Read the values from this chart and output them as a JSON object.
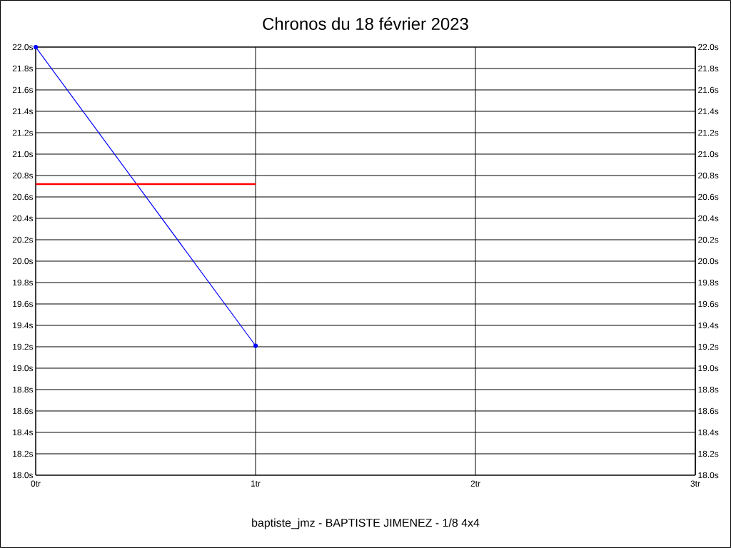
{
  "chart_data": {
    "type": "line",
    "title": "Chronos du 18 février 2023",
    "xlabel": "baptiste_jmz - BAPTISTE JIMENEZ - 1/8 4x4",
    "categories": [
      "0tr",
      "1tr",
      "2tr",
      "3tr"
    ],
    "ylim": [
      18,
      22
    ],
    "yticks": [
      {
        "value": 18,
        "label": "18.0s"
      },
      {
        "value": 18.2,
        "label": "18.2s"
      },
      {
        "value": 18.4,
        "label": "18.4s"
      },
      {
        "value": 18.6,
        "label": "18.6s"
      },
      {
        "value": 18.8,
        "label": "18.8s"
      },
      {
        "value": 19,
        "label": "19.0s"
      },
      {
        "value": 19.2,
        "label": "19.2s"
      },
      {
        "value": 19.4,
        "label": "19.4s"
      },
      {
        "value": 19.6,
        "label": "19.6s"
      },
      {
        "value": 19.8,
        "label": "19.8s"
      },
      {
        "value": 20,
        "label": "20.0s"
      },
      {
        "value": 20.2,
        "label": "20.2s"
      },
      {
        "value": 20.4,
        "label": "20.4s"
      },
      {
        "value": 20.6,
        "label": "20.6s"
      },
      {
        "value": 20.8,
        "label": "20.8s"
      },
      {
        "value": 21,
        "label": "21.0s"
      },
      {
        "value": 21.2,
        "label": "21.2s"
      },
      {
        "value": 21.4,
        "label": "21.4s"
      },
      {
        "value": 21.6,
        "label": "21.6s"
      },
      {
        "value": 21.8,
        "label": "21.8s"
      },
      {
        "value": 22,
        "label": "22.0s"
      }
    ],
    "y2lim": [
      18,
      22
    ],
    "y2ticks": [
      {
        "value": 18,
        "label": "18.0s"
      },
      {
        "value": 18.2,
        "label": "18.2s"
      },
      {
        "value": 18.4,
        "label": "18.4s"
      },
      {
        "value": 18.6,
        "label": "18.6s"
      },
      {
        "value": 18.8,
        "label": "18.8s"
      },
      {
        "value": 19,
        "label": "19.0s"
      },
      {
        "value": 19.2,
        "label": "19.2s"
      },
      {
        "value": 19.4,
        "label": "19.4s"
      },
      {
        "value": 19.6,
        "label": "19.6s"
      },
      {
        "value": 19.8,
        "label": "19.8s"
      },
      {
        "value": 20,
        "label": "20.0s"
      },
      {
        "value": 20.2,
        "label": "20.2s"
      },
      {
        "value": 20.4,
        "label": "20.4s"
      },
      {
        "value": 20.6,
        "label": "20.6s"
      },
      {
        "value": 20.8,
        "label": "20.8s"
      },
      {
        "value": 21,
        "label": "21.0s"
      },
      {
        "value": 21.2,
        "label": "21.2s"
      },
      {
        "value": 21.4,
        "label": "21.4s"
      },
      {
        "value": 21.6,
        "label": "21.6s"
      },
      {
        "value": 21.8,
        "label": "21.8s"
      },
      {
        "value": 22,
        "label": "22.0s"
      }
    ],
    "grid": true,
    "series": [
      {
        "type": "line",
        "color": "#0000ff",
        "values": [
          22.0,
          19.21,
          null,
          null
        ],
        "marker": "circle"
      },
      {
        "type": "line",
        "color": "#ff0000",
        "values": [
          20.72,
          20.72,
          null,
          null
        ],
        "marker": "none"
      }
    ]
  }
}
